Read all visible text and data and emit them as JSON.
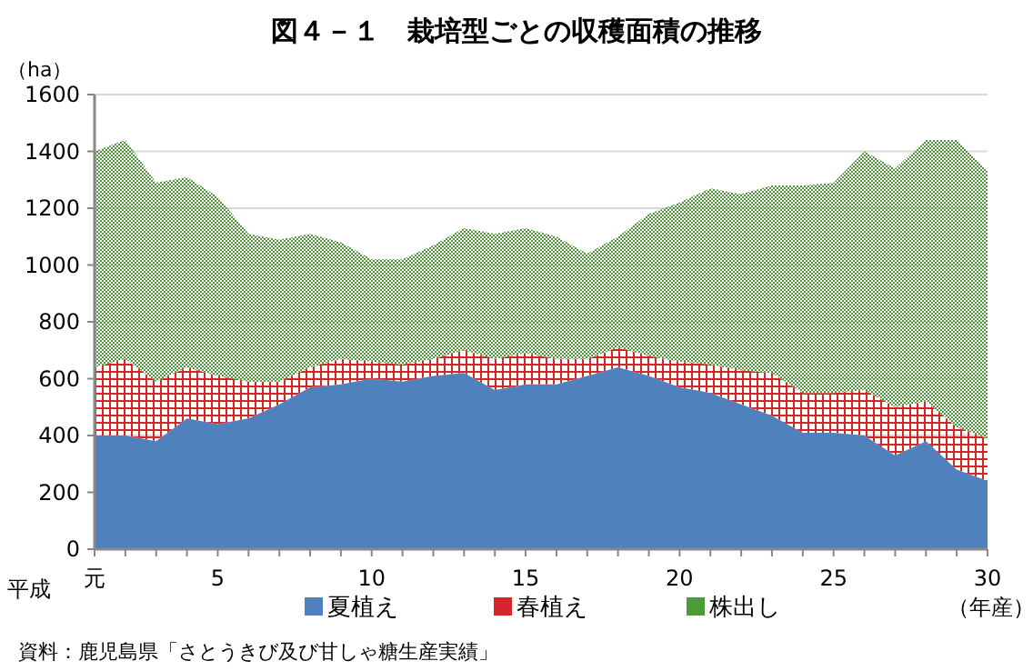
{
  "chart_data": {
    "type": "area",
    "stacked": true,
    "title": "図４－１　栽培型ごとの収穫面積の推移",
    "ylabel": "（ha）",
    "xlabel": "（年産）",
    "annotations": [
      "平成",
      "資料：鹿児島県「さとうきび及び甘しゃ糖生産実績」"
    ],
    "x": [
      1,
      2,
      3,
      4,
      5,
      6,
      7,
      8,
      9,
      10,
      11,
      12,
      13,
      14,
      15,
      16,
      17,
      18,
      19,
      20,
      21,
      22,
      23,
      24,
      25,
      26,
      27,
      28,
      29,
      30
    ],
    "xlim": [
      1,
      30
    ],
    "xticks": [
      {
        "value": 1,
        "label": "元"
      },
      {
        "value": 2,
        "label": null
      },
      {
        "value": 3,
        "label": null
      },
      {
        "value": 4,
        "label": null
      },
      5,
      {
        "value": 6,
        "label": null
      },
      {
        "value": 7,
        "label": null
      },
      {
        "value": 8,
        "label": null
      },
      {
        "value": 9,
        "label": null
      },
      10,
      {
        "value": 11,
        "label": null
      },
      {
        "value": 12,
        "label": null
      },
      {
        "value": 13,
        "label": null
      },
      {
        "value": 14,
        "label": null
      },
      15,
      {
        "value": 16,
        "label": null
      },
      {
        "value": 17,
        "label": null
      },
      {
        "value": 18,
        "label": null
      },
      {
        "value": 19,
        "label": null
      },
      20,
      {
        "value": 21,
        "label": null
      },
      {
        "value": 22,
        "label": null
      },
      {
        "value": 23,
        "label": null
      },
      {
        "value": 24,
        "label": null
      },
      25,
      {
        "value": 26,
        "label": null
      },
      {
        "value": 27,
        "label": null
      },
      {
        "value": 28,
        "label": null
      },
      {
        "value": 29,
        "label": null
      },
      30
    ],
    "ylim": [
      0,
      1600
    ],
    "yticks": [
      0,
      200,
      400,
      600,
      800,
      1000,
      1200,
      1400,
      1600
    ],
    "grid": "y",
    "legend": "bottom",
    "series": [
      {
        "name": "夏植え",
        "color": "#4f81bd",
        "values": [
          400,
          400,
          380,
          460,
          440,
          460,
          510,
          570,
          580,
          600,
          590,
          610,
          620,
          560,
          580,
          580,
          610,
          640,
          610,
          570,
          550,
          510,
          470,
          410,
          410,
          400,
          330,
          380,
          280,
          240
        ]
      },
      {
        "name": "春植え",
        "color": "#d7262b",
        "values": [
          240,
          270,
          210,
          180,
          170,
          130,
          80,
          70,
          90,
          60,
          60,
          60,
          80,
          110,
          110,
          90,
          60,
          70,
          70,
          90,
          100,
          120,
          150,
          140,
          140,
          160,
          170,
          140,
          150,
          150
        ]
      },
      {
        "name": "株出し",
        "color": "#4e9a3a",
        "values": [
          760,
          770,
          700,
          670,
          630,
          520,
          500,
          470,
          410,
          360,
          370,
          400,
          430,
          440,
          440,
          430,
          370,
          390,
          500,
          560,
          620,
          620,
          660,
          730,
          740,
          840,
          840,
          920,
          1010,
          940
        ]
      }
    ]
  }
}
